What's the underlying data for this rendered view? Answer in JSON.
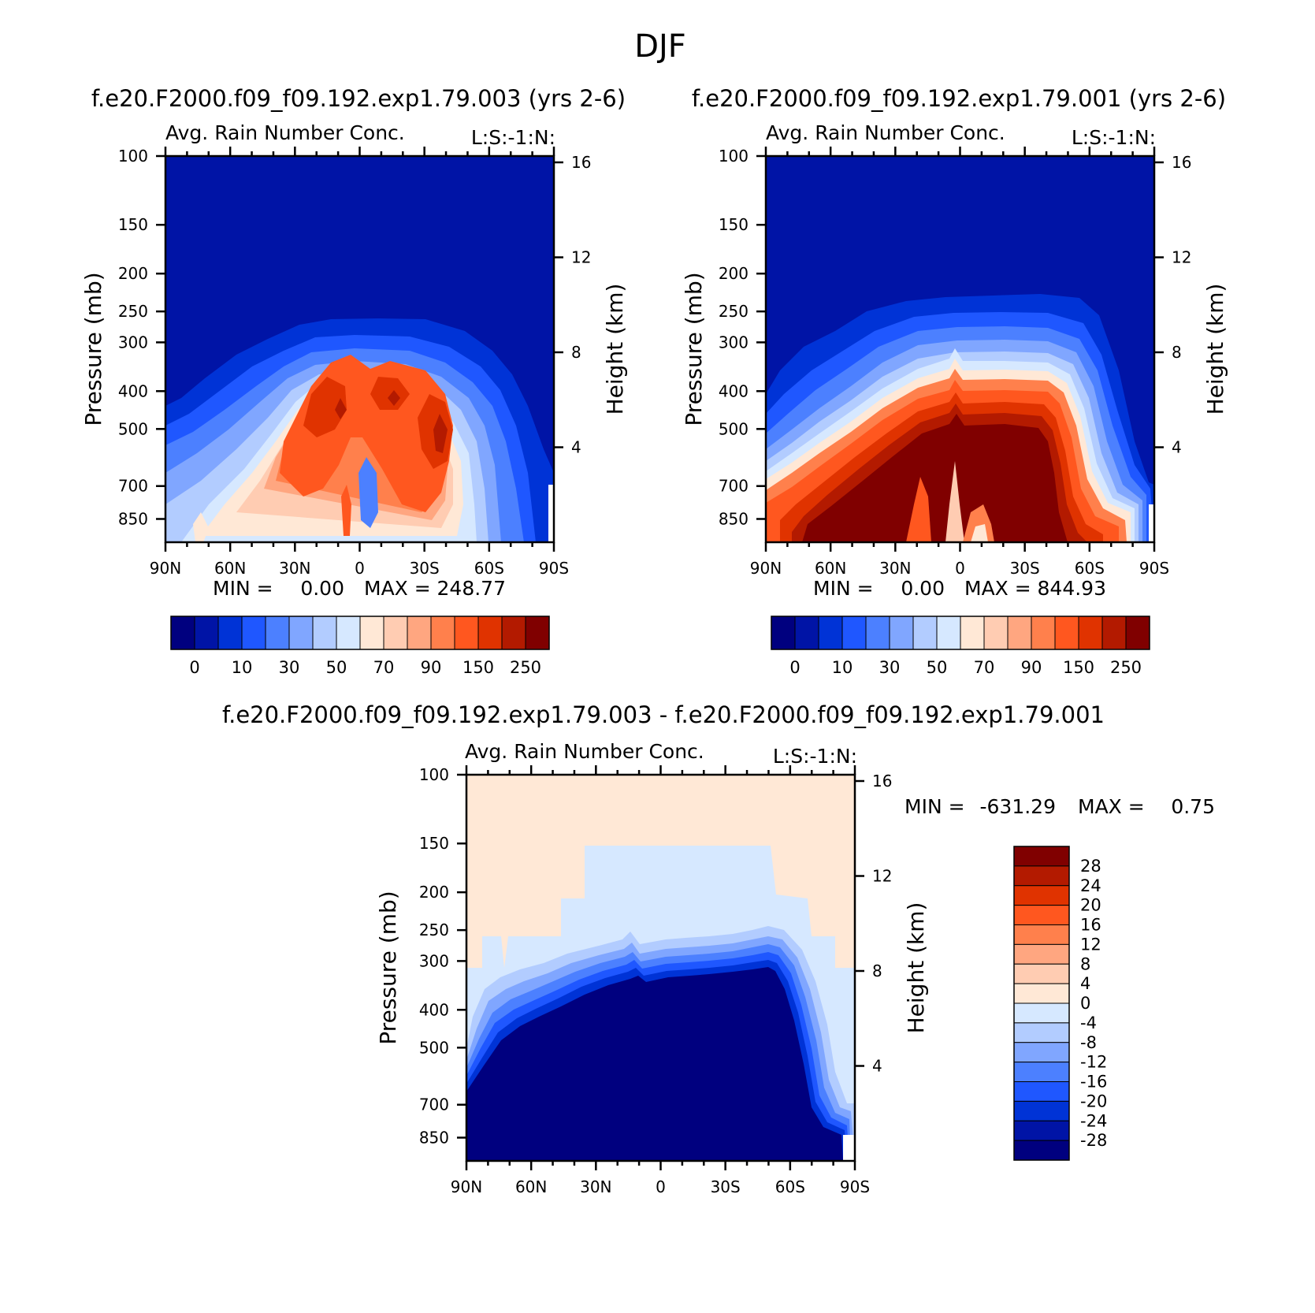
{
  "figure_title": "DJF",
  "colors": {
    "diverging": [
      "#00007f",
      "#0014a6",
      "#0033d6",
      "#1f57ff",
      "#4c80ff",
      "#80a6ff",
      "#b2ccff",
      "#d6e8ff",
      "#ffe8d6",
      "#ffccb2",
      "#ffa680",
      "#ff804c",
      "#ff571f",
      "#e03300",
      "#b31a00",
      "#800000"
    ]
  },
  "panels": [
    {
      "case_title": "f.e20.F2000.f09_f09.192.exp1.79.003 (yrs 2-6)",
      "var_title": "Avg. Rain Number Conc.",
      "right_note": "L:S:-1:N:",
      "ylabel": "Pressure (mb)",
      "ylabel_right": "Height (km)",
      "yticks": [
        "100",
        "150",
        "200",
        "250",
        "300",
        "400",
        "500",
        "700",
        "850"
      ],
      "height_ticks": [
        "16",
        "12",
        "8",
        "4"
      ],
      "xticks": [
        "90N",
        "60N",
        "30N",
        "0",
        "30S",
        "60S",
        "90S"
      ],
      "min_label": "MIN =",
      "min_value": "0.00",
      "max_label": "MAX =",
      "max_value": "248.77",
      "colorbar_labels": [
        "0",
        "10",
        "30",
        "50",
        "70",
        "90",
        "150",
        "250"
      ]
    },
    {
      "case_title": "f.e20.F2000.f09_f09.192.exp1.79.001 (yrs 2-6)",
      "var_title": "Avg. Rain Number Conc.",
      "right_note": "L:S:-1:N:",
      "ylabel": "Pressure (mb)",
      "ylabel_right": "Height (km)",
      "yticks": [
        "100",
        "150",
        "200",
        "250",
        "300",
        "400",
        "500",
        "700",
        "850"
      ],
      "height_ticks": [
        "16",
        "12",
        "8",
        "4"
      ],
      "xticks": [
        "90N",
        "60N",
        "30N",
        "0",
        "30S",
        "60S",
        "90S"
      ],
      "min_label": "MIN =",
      "min_value": "0.00",
      "max_label": "MAX =",
      "max_value": "844.93",
      "colorbar_labels": [
        "0",
        "10",
        "30",
        "50",
        "70",
        "90",
        "150",
        "250"
      ]
    },
    {
      "case_title": "f.e20.F2000.f09_f09.192.exp1.79.003 - f.e20.F2000.f09_f09.192.exp1.79.001",
      "var_title": "Avg. Rain Number Conc.",
      "right_note": "L:S:-1:N:",
      "ylabel": "Pressure (mb)",
      "ylabel_right": "Height (km)",
      "yticks": [
        "100",
        "150",
        "200",
        "250",
        "300",
        "400",
        "500",
        "700",
        "850"
      ],
      "height_ticks": [
        "16",
        "12",
        "8",
        "4"
      ],
      "xticks": [
        "90N",
        "60N",
        "30N",
        "0",
        "30S",
        "60S",
        "90S"
      ],
      "min_label": "MIN =",
      "min_value": "-631.29",
      "max_label": "MAX =",
      "max_value": "0.75",
      "colorbar_labels": [
        "28",
        "24",
        "20",
        "16",
        "12",
        "8",
        "4",
        "0",
        "-4",
        "-8",
        "-12",
        "-16",
        "-20",
        "-24",
        "-28"
      ]
    }
  ],
  "chart_data": [
    {
      "type": "heatmap",
      "title": "Avg. Rain Number Conc.",
      "subtitle": "f.e20.F2000.f09_f09.192.exp1.79.003 (yrs 2-6)",
      "xlabel": "",
      "ylabel": "Pressure (mb)",
      "ylabel_right": "Height (km)",
      "x_range": [
        "90N",
        "90S"
      ],
      "ylim": [
        1000,
        100
      ],
      "y_scale": "log",
      "levels": [
        0,
        10,
        30,
        50,
        70,
        90,
        150,
        250
      ],
      "min": 0.0,
      "max": 248.77,
      "notes": "rain number concentration with maxima near 400-500 mb from 30N to 40S"
    },
    {
      "type": "heatmap",
      "title": "Avg. Rain Number Conc.",
      "subtitle": "f.e20.F2000.f09_f09.192.exp1.79.001 (yrs 2-6)",
      "xlabel": "",
      "ylabel": "Pressure (mb)",
      "ylabel_right": "Height (km)",
      "x_range": [
        "90N",
        "90S"
      ],
      "ylim": [
        1000,
        100
      ],
      "y_scale": "log",
      "levels": [
        0,
        10,
        30,
        50,
        70,
        90,
        150,
        250
      ],
      "min": 0.0,
      "max": 844.93,
      "notes": "values above 250 fill the troposphere below 300-450 mb from 70N to 70S"
    },
    {
      "type": "heatmap",
      "title": "Avg. Rain Number Conc.",
      "subtitle": "f.e20.F2000.f09_f09.192.exp1.79.003 - f.e20.F2000.f09_f09.192.exp1.79.001",
      "xlabel": "",
      "ylabel": "Pressure (mb)",
      "ylabel_right": "Height (km)",
      "x_range": [
        "90N",
        "90S"
      ],
      "ylim": [
        1000,
        100
      ],
      "y_scale": "log",
      "levels": [
        -28,
        -24,
        -20,
        -16,
        -12,
        -8,
        -4,
        0,
        4,
        8,
        12,
        16,
        20,
        24,
        28
      ],
      "min": -631.29,
      "max": 0.75,
      "notes": "differences below -28 everywhere below ~300 mb; near-zero positive above"
    }
  ]
}
